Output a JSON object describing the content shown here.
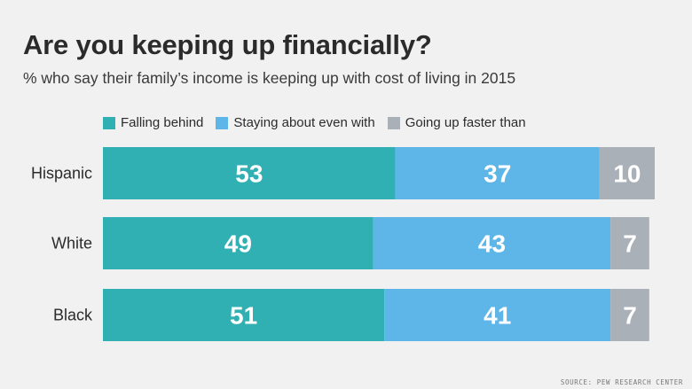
{
  "title": "Are you keeping up financially?",
  "subtitle": "% who say their family’s income is keeping up with cost of living in 2015",
  "source": "SOURCE: PEW RESEARCH CENTER",
  "chart_data": {
    "type": "bar",
    "orientation": "horizontal",
    "stacked": true,
    "categories": [
      "Hispanic",
      "White",
      "Black"
    ],
    "series": [
      {
        "name": "Falling behind",
        "color": "#31b0b4",
        "values": [
          53,
          49,
          51
        ]
      },
      {
        "name": "Staying about even with",
        "color": "#5db5e8",
        "values": [
          37,
          43,
          41
        ]
      },
      {
        "name": "Going up faster than",
        "color": "#a9b0b8",
        "values": [
          10,
          7,
          7
        ]
      }
    ],
    "legend_position": "top",
    "data_labels": true,
    "grid": false
  }
}
